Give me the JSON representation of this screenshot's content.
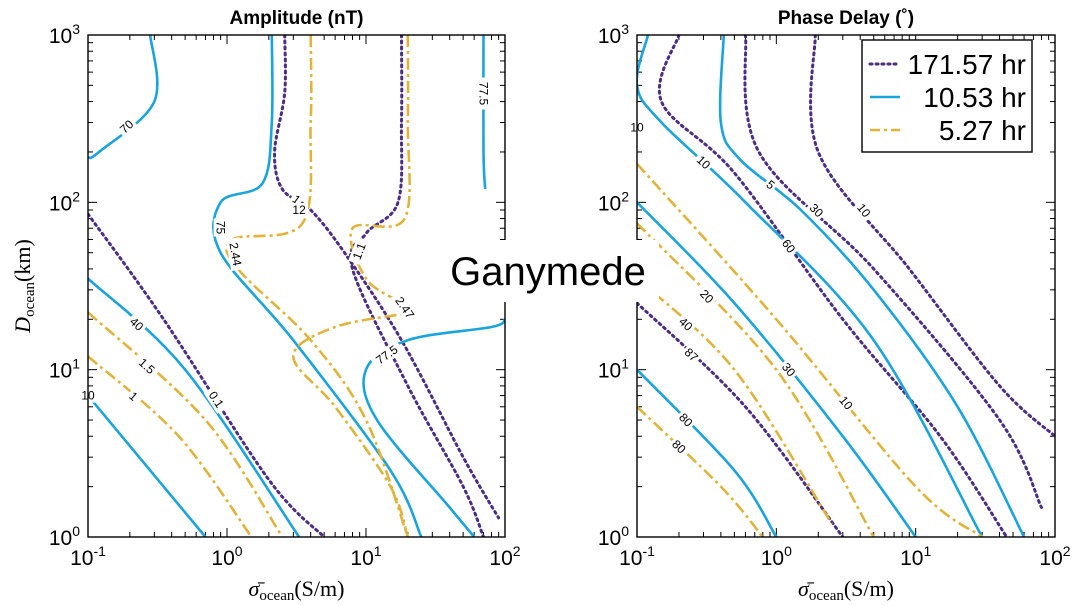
{
  "figure_label": "Ganymede",
  "chart_data": [
    {
      "type": "line",
      "title": "Amplitude (nT)",
      "xlabel": "σ̄ ocean (S/m)",
      "ylabel": "D ocean (km)",
      "xscale": "log",
      "yscale": "log",
      "xlim": [
        0.1,
        100
      ],
      "ylim": [
        1,
        1000
      ],
      "xticks": [
        "10^-1",
        "10^0",
        "10^1",
        "10^2"
      ],
      "yticks": [
        "10^0",
        "10^1",
        "10^2",
        "10^3"
      ],
      "legend": "none",
      "series": [
        {
          "name": "171.57 hr",
          "style": "dotted",
          "color": "#4B2E83",
          "contours": [
            {
              "label": "0.1",
              "points": [
                [
                  0.1,
                  85
                ],
                [
                  0.35,
                  20
                ],
                [
                  2,
                  2.2
                ],
                [
                  5,
                  1
                ]
              ]
            },
            {
              "label": "1",
              "points": [
                [
                  2.6,
                  1000
                ],
                [
                  2.6,
                  450
                ],
                [
                  2.2,
                  200
                ],
                [
                  2.5,
                  120
                ],
                [
                  4,
                  90
                ],
                [
                  7,
                  50
                ],
                [
                  18,
                  15
                ],
                [
                  50,
                  3
                ],
                [
                  90,
                  1.3
                ]
              ]
            },
            {
              "label": "1.1",
              "points": [
                [
                  18,
                  1000
                ],
                [
                  18,
                  300
                ],
                [
                  17,
                  100
                ],
                [
                  10,
                  65
                ],
                [
                  8,
                  40
                ],
                [
                  20,
                  8
                ],
                [
                  50,
                  2
                ],
                [
                  70,
                  1
                ]
              ]
            },
            {
              "label": "12",
              "points": [
                [
                  3.3,
                  90
                ],
                [
                  3.3,
                  90
                ]
              ]
            }
          ]
        },
        {
          "name": "10.53 hr",
          "style": "solid",
          "color": "#1BA4DB",
          "contours": [
            {
              "label": "10",
              "points": [
                [
                  0.1,
                  7
                ],
                [
                  0.7,
                  1
                ]
              ]
            },
            {
              "label": "40",
              "points": [
                [
                  0.1,
                  35
                ],
                [
                  0.5,
                  10
                ],
                [
                  3.3,
                  1
                ]
              ]
            },
            {
              "label": "70",
              "points": [
                [
                  0.28,
                  1000
                ],
                [
                  0.3,
                  400
                ],
                [
                  0.12,
                  200
                ],
                [
                  0.1,
                  185
                ]
              ]
            },
            {
              "label": "75",
              "points": [
                [
                  2.1,
                  1000
                ],
                [
                  2.1,
                  300
                ],
                [
                  1.8,
                  130
                ],
                [
                  0.9,
                  100
                ],
                [
                  0.9,
                  50
                ],
                [
                  3,
                  15
                ],
                [
                  15,
                  2.5
                ],
                [
                  25,
                  1
                ]
              ]
            },
            {
              "label": "77.5",
              "points": [
                [
                  100,
                  20
                ],
                [
                  80,
                  18
                ],
                [
                  20,
                  15
                ],
                [
                  10,
                  10
                ],
                [
                  12,
                  5
                ],
                [
                  40,
                  1.5
                ],
                [
                  60,
                  1
                ]
              ]
            },
            {
              "label": "77.5",
              "points": [
                [
                  70,
                  1000
                ],
                [
                  70,
                  200
                ],
                [
                  72,
                  120
                ]
              ]
            }
          ]
        },
        {
          "name": "5.27 hr",
          "style": "dashdot",
          "color": "#E0B43C",
          "contours": [
            {
              "label": "1",
              "points": [
                [
                  0.1,
                  12
                ],
                [
                  0.45,
                  4
                ],
                [
                  1.5,
                  1
                ]
              ]
            },
            {
              "label": "1.5",
              "points": [
                [
                  0.1,
                  22
                ],
                [
                  0.7,
                  5
                ],
                [
                  2.5,
                  1
                ]
              ]
            },
            {
              "label": "2.44",
              "points": [
                [
                  4,
                  1000
                ],
                [
                  4,
                  300
                ],
                [
                  3.5,
                  75
                ],
                [
                  1.1,
                  60
                ],
                [
                  1.2,
                  40
                ],
                [
                  4,
                  15
                ],
                [
                  10,
                  5
                ],
                [
                  20,
                  1
                ]
              ]
            },
            {
              "label": "2.47",
              "points": [
                [
                  20,
                  1000
                ],
                [
                  20,
                  300
                ],
                [
                  19,
                  80
                ],
                [
                  8,
                  70
                ],
                [
                  10,
                  35
                ],
                [
                  18,
                  25
                ],
                [
                  20,
                  22
                ],
                [
                  6,
                  18
                ],
                [
                  3,
                  12
                ],
                [
                  6,
                  6
                ],
                [
                  15,
                  2
                ],
                [
                  20,
                  1
                ]
              ]
            }
          ]
        }
      ]
    },
    {
      "type": "line",
      "title": "Phase Delay (˚)",
      "xlabel": "σ̄ ocean (S/m)",
      "ylabel": "",
      "xscale": "log",
      "yscale": "log",
      "xlim": [
        0.1,
        100
      ],
      "ylim": [
        1,
        1000
      ],
      "xticks": [
        "10^-1",
        "10^0",
        "10^1",
        "10^2"
      ],
      "yticks": [
        "10^0",
        "10^1",
        "10^2",
        "10^3"
      ],
      "legend": "top-right",
      "series": [
        {
          "name": "171.57 hr",
          "style": "dotted",
          "color": "#4B2E83",
          "contours": [
            {
              "label": "10",
              "points": [
                [
                  1.9,
                  1000
                ],
                [
                  2,
                  200
                ],
                [
                  9,
                  40
                ],
                [
                  40,
                  8
                ],
                [
                  100,
                  4
                ]
              ]
            },
            {
              "label": "30",
              "points": [
                [
                  0.6,
                  1000
                ],
                [
                  0.75,
                  200
                ],
                [
                  5,
                  40
                ],
                [
                  40,
                  5
                ],
                [
                  80,
                  1.5
                ]
              ]
            },
            {
              "label": "60",
              "points": [
                [
                  0.2,
                  1000
                ],
                [
                  0.15,
                  400
                ],
                [
                  0.5,
                  150
                ],
                [
                  3,
                  20
                ],
                [
                  15,
                  4
                ],
                [
                  45,
                  1
                ]
              ]
            },
            {
              "label": "10",
              "points": [
                [
                  0.1,
                  280
                ],
                [
                  0.1,
                  280
                ]
              ]
            },
            {
              "label": "87",
              "points": [
                [
                  0.1,
                  25
                ],
                [
                  0.6,
                  6
                ],
                [
                  3,
                  1
                ]
              ]
            }
          ]
        },
        {
          "name": "10.53 hr",
          "style": "solid",
          "color": "#1BA4DB",
          "contours": [
            {
              "label": "5",
              "points": [
                [
                  0.42,
                  1000
                ],
                [
                  0.4,
                  300
                ],
                [
                  0.55,
                  180
                ],
                [
                  1.5,
                  90
                ],
                [
                  5,
                  30
                ],
                [
                  20,
                  6
                ],
                [
                  60,
                  1
                ]
              ]
            },
            {
              "label": "10",
              "points": [
                [
                  0.12,
                  1000
                ],
                [
                  0.1,
                  500
                ],
                [
                  0.15,
                  300
                ],
                [
                  0.6,
                  100
                ],
                [
                  5,
                  15
                ],
                [
                  30,
                  1
                ]
              ]
            },
            {
              "label": "30",
              "points": [
                [
                  0.1,
                  100
                ],
                [
                  0.5,
                  25
                ],
                [
                  3,
                  4
                ],
                [
                  10,
                  1
                ]
              ]
            },
            {
              "label": "80",
              "points": [
                [
                  0.1,
                  10
                ],
                [
                  0.5,
                  2.5
                ],
                [
                  1,
                  1
                ]
              ]
            }
          ]
        },
        {
          "name": "5.27 hr",
          "style": "dashdot",
          "color": "#E0B43C",
          "contours": [
            {
              "label": "10",
              "points": [
                [
                  0.1,
                  170
                ],
                [
                  1,
                  20
                ],
                [
                  10,
                  2
                ],
                [
                  30,
                  1
                ]
              ]
            },
            {
              "label": "20",
              "points": [
                [
                  0.1,
                  75
                ],
                [
                  1,
                  10
                ],
                [
                  5,
                  1
                ]
              ]
            },
            {
              "label": "40",
              "points": [
                [
                  0.1,
                  35
                ],
                [
                  0.5,
                  10
                ],
                [
                  2.5,
                  1.2
                ]
              ]
            },
            {
              "label": "80",
              "points": [
                [
                  0.1,
                  6
                ],
                [
                  0.4,
                  2
                ],
                [
                  0.8,
                  1
                ]
              ]
            }
          ]
        }
      ]
    }
  ]
}
